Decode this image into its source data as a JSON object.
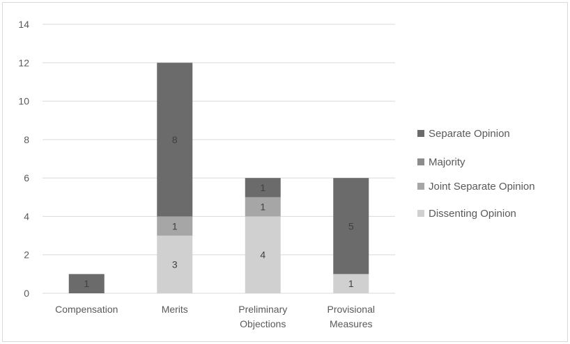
{
  "chart_data": {
    "type": "bar",
    "stacked": true,
    "categories": [
      [
        "Compensation"
      ],
      [
        "Merits"
      ],
      [
        "Preliminary",
        "Objections"
      ],
      [
        "Provisional",
        "Measures"
      ]
    ],
    "series": [
      {
        "name": "Dissenting Opinion",
        "color": "#d0d0d0",
        "values": [
          0,
          3,
          4,
          1
        ]
      },
      {
        "name": "Joint Separate Opinion",
        "color": "#a6a6a6",
        "values": [
          0,
          1,
          1,
          0
        ]
      },
      {
        "name": "Majority",
        "color": "#8c8c8c",
        "values": [
          0,
          0,
          0,
          0
        ]
      },
      {
        "name": "Separate Opinion",
        "color": "#6b6b6b",
        "values": [
          1,
          8,
          1,
          5
        ]
      }
    ],
    "ylim": [
      0,
      14
    ],
    "yticks": [
      0,
      2,
      4,
      6,
      8,
      10,
      12,
      14
    ],
    "grid": true,
    "legend_position": "right",
    "legend_order": [
      "Separate Opinion",
      "Majority",
      "Joint Separate Opinion",
      "Dissenting Opinion"
    ]
  }
}
